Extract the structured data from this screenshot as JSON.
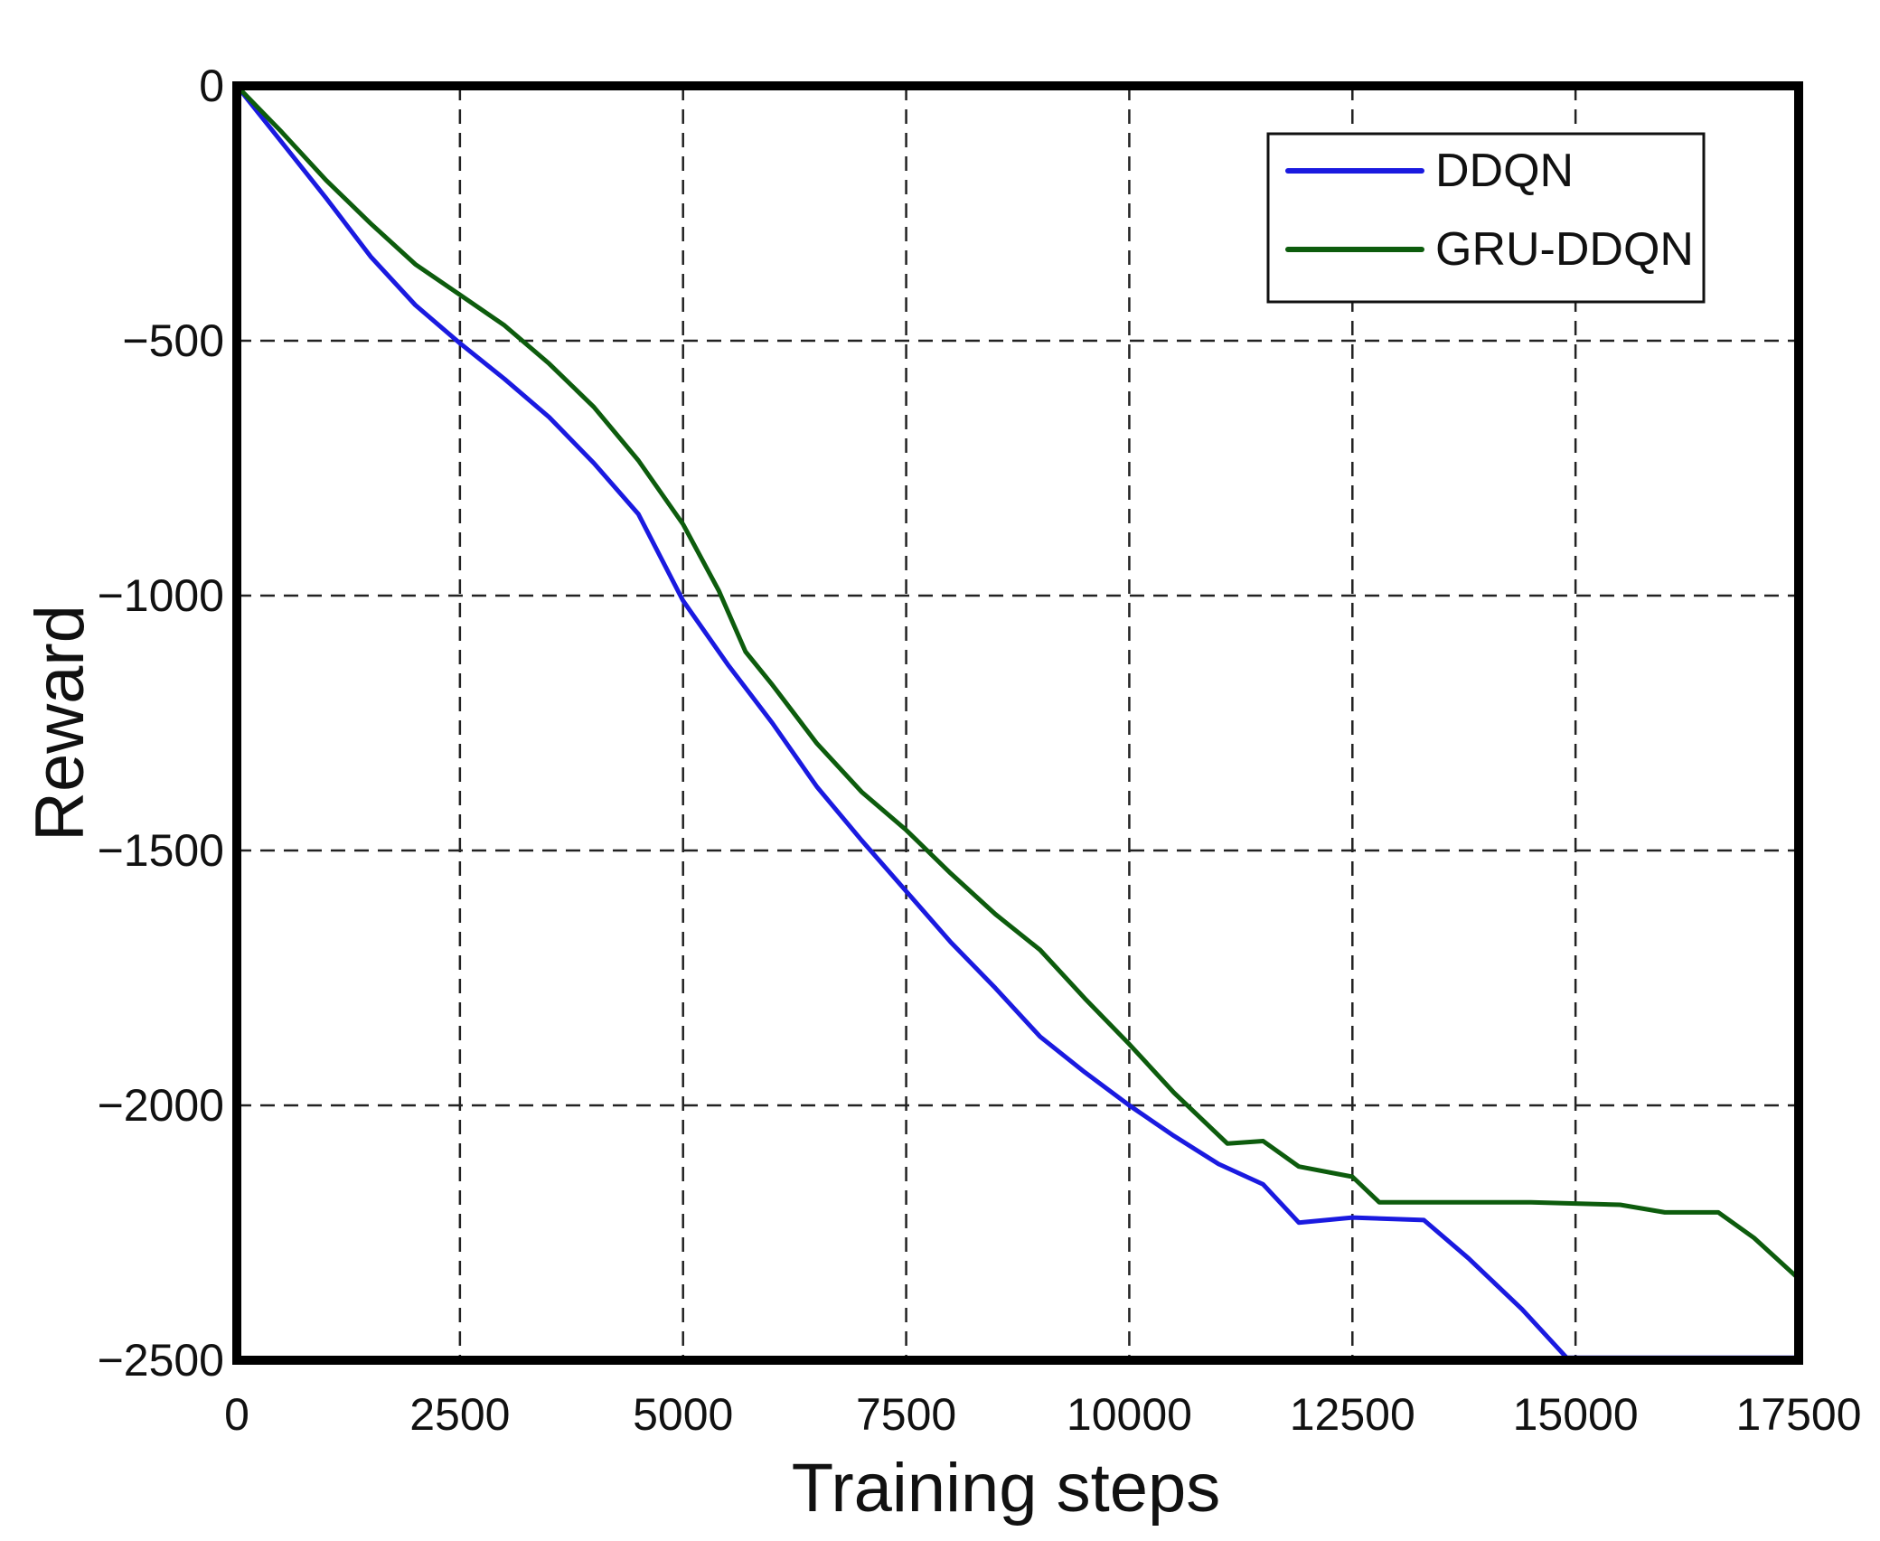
{
  "chart_data": {
    "type": "line",
    "title": "",
    "xlabel": "Training steps",
    "ylabel": "Reward",
    "xlim": [
      0,
      17500
    ],
    "ylim": [
      -2500,
      0
    ],
    "xticks": [
      0,
      2500,
      5000,
      7500,
      10000,
      12500,
      15000,
      17500
    ],
    "yticks": [
      0,
      -500,
      -1000,
      -1500,
      -2000,
      -2500
    ],
    "xtick_labels": [
      "0",
      "2500",
      "5000",
      "7500",
      "10000",
      "12500",
      "15000",
      "17500"
    ],
    "ytick_labels": [
      "0",
      "−500",
      "−1000",
      "−1500",
      "−2000",
      "−2500"
    ],
    "grid": true,
    "legend_position": "top-right",
    "series": [
      {
        "name": "DDQN",
        "color": "#1a1ae0",
        "points": [
          [
            0,
            0
          ],
          [
            500,
            -110
          ],
          [
            1000,
            -220
          ],
          [
            1500,
            -335
          ],
          [
            2000,
            -430
          ],
          [
            2500,
            -505
          ],
          [
            3000,
            -575
          ],
          [
            3500,
            -650
          ],
          [
            4000,
            -740
          ],
          [
            4500,
            -840
          ],
          [
            5000,
            -1010
          ],
          [
            5500,
            -1135
          ],
          [
            6000,
            -1250
          ],
          [
            6500,
            -1375
          ],
          [
            7000,
            -1480
          ],
          [
            7500,
            -1580
          ],
          [
            8000,
            -1680
          ],
          [
            8500,
            -1770
          ],
          [
            9000,
            -1865
          ],
          [
            9500,
            -1935
          ],
          [
            10000,
            -2000
          ],
          [
            10500,
            -2060
          ],
          [
            11000,
            -2115
          ],
          [
            11500,
            -2155
          ],
          [
            11900,
            -2230
          ],
          [
            12500,
            -2220
          ],
          [
            13300,
            -2225
          ],
          [
            13800,
            -2300
          ],
          [
            14400,
            -2400
          ],
          [
            14900,
            -2495
          ],
          [
            15500,
            -2495
          ],
          [
            16500,
            -2495
          ],
          [
            17500,
            -2495
          ]
        ]
      },
      {
        "name": "GRU-DDQN",
        "color": "#0d5c0d",
        "points": [
          [
            0,
            0
          ],
          [
            500,
            -90
          ],
          [
            1000,
            -185
          ],
          [
            1500,
            -270
          ],
          [
            2000,
            -350
          ],
          [
            2500,
            -410
          ],
          [
            3000,
            -470
          ],
          [
            3500,
            -545
          ],
          [
            4000,
            -630
          ],
          [
            4500,
            -735
          ],
          [
            5000,
            -860
          ],
          [
            5400,
            -990
          ],
          [
            5700,
            -1110
          ],
          [
            6000,
            -1175
          ],
          [
            6500,
            -1290
          ],
          [
            7000,
            -1385
          ],
          [
            7500,
            -1460
          ],
          [
            8000,
            -1545
          ],
          [
            8500,
            -1625
          ],
          [
            9000,
            -1695
          ],
          [
            9500,
            -1790
          ],
          [
            10000,
            -1880
          ],
          [
            10500,
            -1975
          ],
          [
            11100,
            -2075
          ],
          [
            11500,
            -2070
          ],
          [
            11900,
            -2120
          ],
          [
            12500,
            -2140
          ],
          [
            12800,
            -2190
          ],
          [
            13500,
            -2190
          ],
          [
            14500,
            -2190
          ],
          [
            15500,
            -2195
          ],
          [
            16000,
            -2210
          ],
          [
            16600,
            -2210
          ],
          [
            17000,
            -2260
          ],
          [
            17500,
            -2340
          ]
        ]
      }
    ]
  }
}
